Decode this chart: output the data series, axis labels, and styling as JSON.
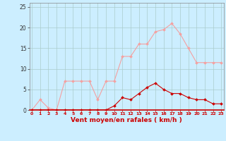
{
  "x": [
    0,
    1,
    2,
    3,
    4,
    5,
    6,
    7,
    8,
    9,
    10,
    11,
    12,
    13,
    14,
    15,
    16,
    17,
    18,
    19,
    20,
    21,
    22,
    23
  ],
  "rafales": [
    0,
    2.5,
    0.5,
    0,
    7,
    7,
    7,
    7,
    2.5,
    7,
    7,
    13,
    13,
    16,
    16,
    19,
    19.5,
    21,
    18.5,
    15,
    11.5,
    11.5,
    11.5,
    11.5
  ],
  "moyen": [
    0,
    0,
    0,
    0,
    0,
    0,
    0,
    0,
    0,
    0,
    1,
    3,
    2.5,
    4,
    5.5,
    6.5,
    5,
    4,
    4,
    3,
    2.5,
    2.5,
    1.5,
    1.5
  ],
  "color_rafales": "#f4a0a0",
  "color_moyen": "#cc0000",
  "background_color": "#cceeff",
  "grid_color": "#aacccc",
  "xlabel": "Vent moyen/en rafales ( km/h )",
  "ylim": [
    0,
    26
  ],
  "xlim": [
    -0.3,
    23.3
  ],
  "yticks": [
    0,
    5,
    10,
    15,
    20,
    25
  ],
  "xticks": [
    0,
    1,
    2,
    3,
    4,
    5,
    6,
    7,
    8,
    9,
    10,
    11,
    12,
    13,
    14,
    15,
    16,
    17,
    18,
    19,
    20,
    21,
    22,
    23
  ]
}
